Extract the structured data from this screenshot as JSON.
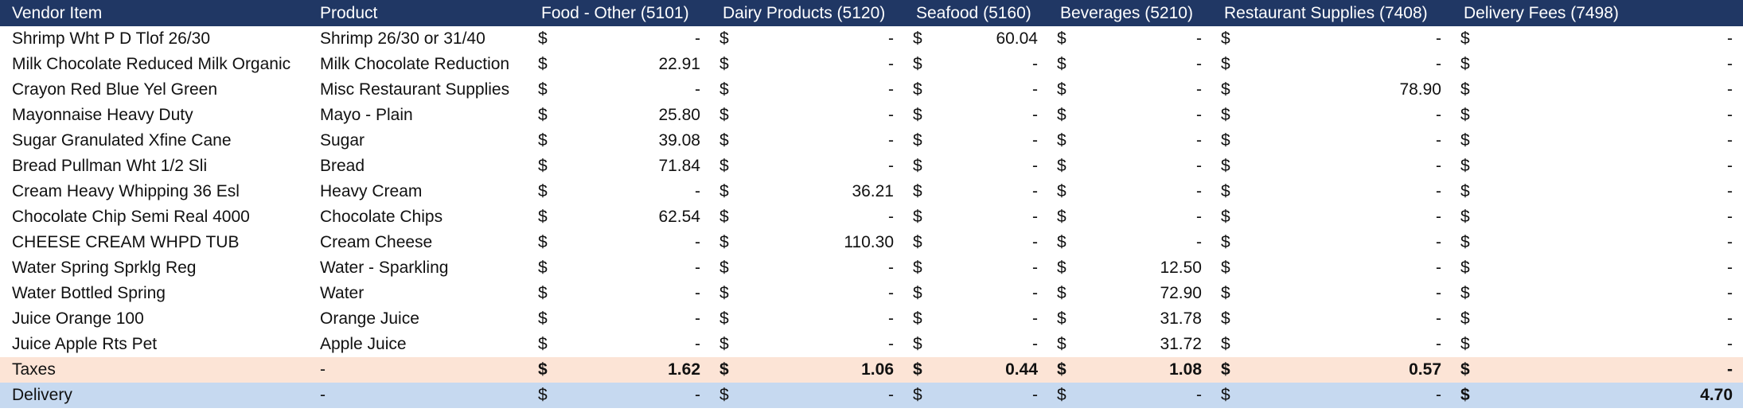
{
  "headers": [
    "Vendor Item",
    "Product",
    "Food - Other (5101)",
    "Dairy Products (5120)",
    "Seafood (5160)",
    "Beverages (5210)",
    "Restaurant Supplies (7408)",
    "Delivery Fees (7498)"
  ],
  "currency_symbol": "$",
  "rows": [
    {
      "vendor_item": "Shrimp Wht P D Tlof 26/30",
      "product": "Shrimp 26/30 or 31/40",
      "amounts": [
        "-",
        "-",
        "60.04",
        "-",
        "-",
        "-"
      ]
    },
    {
      "vendor_item": "Milk Chocolate Reduced Milk Organic",
      "product": "Milk Chocolate Reduction",
      "amounts": [
        "22.91",
        "-",
        "-",
        "-",
        "-",
        "-"
      ]
    },
    {
      "vendor_item": "Crayon Red Blue Yel Green",
      "product": "Misc Restaurant Supplies",
      "amounts": [
        "-",
        "-",
        "-",
        "-",
        "78.90",
        "-"
      ]
    },
    {
      "vendor_item": "Mayonnaise Heavy Duty",
      "product": "Mayo - Plain",
      "amounts": [
        "25.80",
        "-",
        "-",
        "-",
        "-",
        "-"
      ]
    },
    {
      "vendor_item": "Sugar Granulated Xfine Cane",
      "product": "Sugar",
      "amounts": [
        "39.08",
        "-",
        "-",
        "-",
        "-",
        "-"
      ]
    },
    {
      "vendor_item": "Bread Pullman Wht 1/2 Sli",
      "product": "Bread",
      "amounts": [
        "71.84",
        "-",
        "-",
        "-",
        "-",
        "-"
      ]
    },
    {
      "vendor_item": "Cream Heavy Whipping 36  Esl",
      "product": "Heavy Cream",
      "amounts": [
        "-",
        "36.21",
        "-",
        "-",
        "-",
        "-"
      ]
    },
    {
      "vendor_item": "Chocolate Chip Semi Real 4000",
      "product": "Chocolate Chips",
      "amounts": [
        "62.54",
        "-",
        "-",
        "-",
        "-",
        "-"
      ]
    },
    {
      "vendor_item": "CHEESE CREAM WHPD TUB",
      "product": "Cream Cheese",
      "amounts": [
        "-",
        "110.30",
        "-",
        "-",
        "-",
        "-"
      ]
    },
    {
      "vendor_item": "Water Spring Sprklg Reg",
      "product": "Water - Sparkling",
      "amounts": [
        "-",
        "-",
        "-",
        "12.50",
        "-",
        "-"
      ]
    },
    {
      "vendor_item": "Water Bottled Spring",
      "product": "Water",
      "amounts": [
        "-",
        "-",
        "-",
        "72.90",
        "-",
        "-"
      ]
    },
    {
      "vendor_item": "Juice Orange 100",
      "product": "Orange Juice",
      "amounts": [
        "-",
        "-",
        "-",
        "31.78",
        "-",
        "-"
      ]
    },
    {
      "vendor_item": "Juice Apple Rts Pet",
      "product": "Apple Juice",
      "amounts": [
        "-",
        "-",
        "-",
        "31.72",
        "-",
        "-"
      ]
    }
  ],
  "taxes_row": {
    "vendor_item": "Taxes",
    "product": "-",
    "amounts": [
      "1.62",
      "1.06",
      "0.44",
      "1.08",
      "0.57",
      "-"
    ]
  },
  "delivery_row": {
    "vendor_item": "Delivery",
    "product": "-",
    "amounts": [
      "-",
      "-",
      "-",
      "-",
      "-",
      "4.70"
    ]
  },
  "colors": {
    "header_bg": "#203764",
    "header_text": "#ffffff",
    "taxes_bg": "#fce4d6",
    "delivery_bg": "#c6d9f0"
  }
}
